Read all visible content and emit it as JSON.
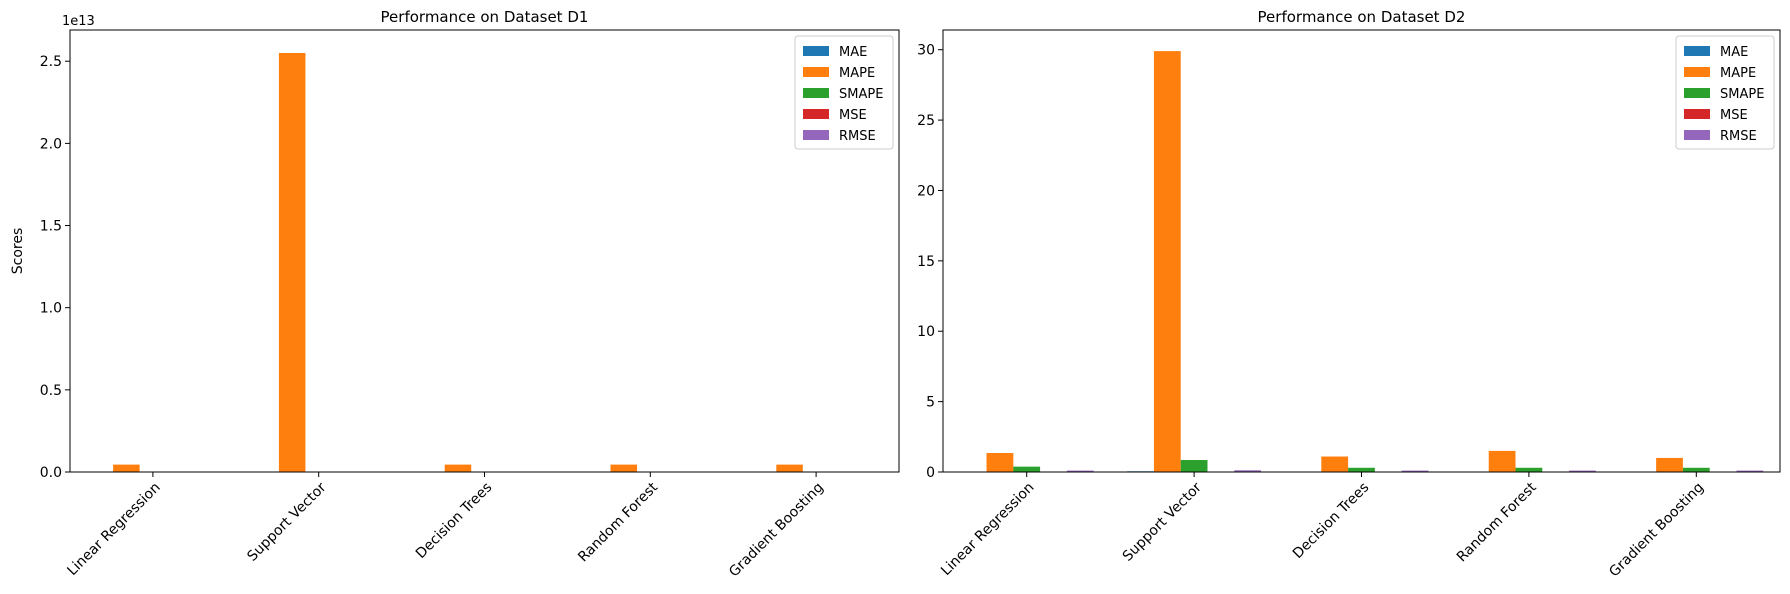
{
  "chart_data": [
    {
      "type": "bar",
      "title": "Performance on Dataset D1",
      "ylabel": "Scores",
      "offset_text": "1e13",
      "categories": [
        "Linear Regression",
        "Support Vector",
        "Decision Trees",
        "Random Forest",
        "Gradient Boosting"
      ],
      "ylim": [
        0,
        26900000000000.0
      ],
      "yticks": [
        0,
        5000000000000.0,
        10000000000000.0,
        15000000000000.0,
        20000000000000.0,
        25000000000000.0
      ],
      "ytick_labels": [
        "0.0",
        "0.5",
        "1.0",
        "1.5",
        "2.0",
        "2.5"
      ],
      "legend": "top-right",
      "grid": false,
      "series": [
        {
          "name": "MAE",
          "color": "#1f77b4",
          "values": [
            0,
            0,
            0,
            0,
            0
          ]
        },
        {
          "name": "MAPE",
          "color": "#ff7f0e",
          "values": [
            450000000000.0,
            25500000000000.0,
            450000000000.0,
            450000000000.0,
            450000000000.0
          ]
        },
        {
          "name": "SMAPE",
          "color": "#2ca02c",
          "values": [
            0,
            0,
            0,
            0,
            0
          ]
        },
        {
          "name": "MSE",
          "color": "#d62728",
          "values": [
            0,
            0,
            0,
            0,
            0
          ]
        },
        {
          "name": "RMSE",
          "color": "#9467bd",
          "values": [
            0,
            0,
            0,
            0,
            0
          ]
        }
      ]
    },
    {
      "type": "bar",
      "title": "Performance on Dataset D2",
      "ylabel": "",
      "categories": [
        "Linear Regression",
        "Support Vector",
        "Decision Trees",
        "Random Forest",
        "Gradient Boosting"
      ],
      "ylim": [
        0,
        31.4
      ],
      "yticks": [
        0,
        5,
        10,
        15,
        20,
        25,
        30
      ],
      "ytick_labels": [
        "0",
        "5",
        "10",
        "15",
        "20",
        "25",
        "30"
      ],
      "legend": "top-right",
      "grid": false,
      "series": [
        {
          "name": "MAE",
          "color": "#1f77b4",
          "values": [
            0.02,
            0.05,
            0.02,
            0.02,
            0.02
          ]
        },
        {
          "name": "MAPE",
          "color": "#ff7f0e",
          "values": [
            1.35,
            29.9,
            1.1,
            1.5,
            1.0
          ]
        },
        {
          "name": "SMAPE",
          "color": "#2ca02c",
          "values": [
            0.38,
            0.85,
            0.3,
            0.3,
            0.3
          ]
        },
        {
          "name": "MSE",
          "color": "#d62728",
          "values": [
            0.01,
            0.01,
            0.01,
            0.01,
            0.01
          ]
        },
        {
          "name": "RMSE",
          "color": "#9467bd",
          "values": [
            0.1,
            0.12,
            0.1,
            0.1,
            0.1
          ]
        }
      ]
    }
  ]
}
